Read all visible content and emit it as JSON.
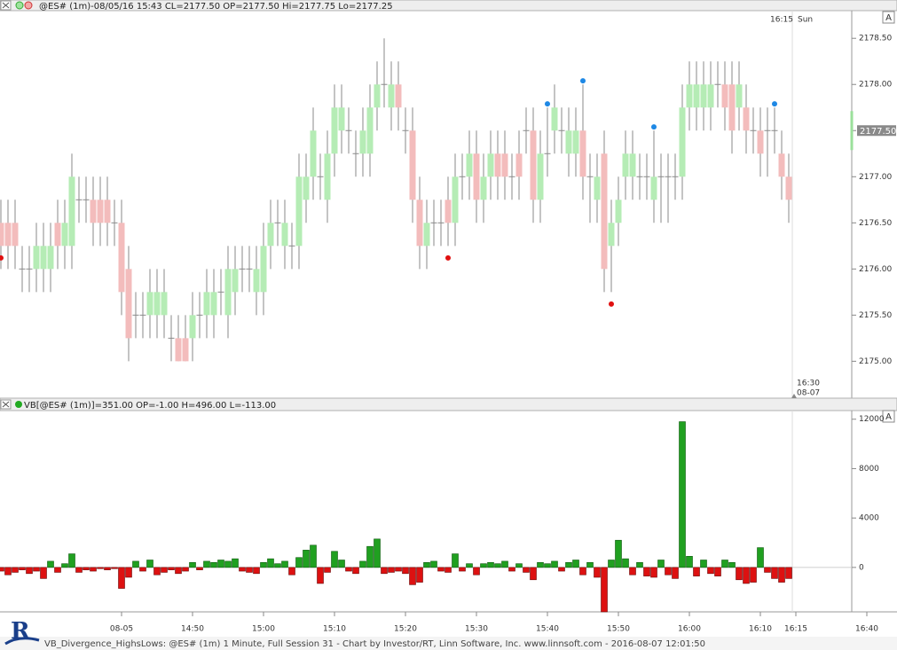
{
  "header": {
    "title": "@ES# (1m)-08/05/16 15:43 CL=2177.50 OP=2177.50 Hi=2177.75 Lo=2177.25",
    "button": "A"
  },
  "chart_data": [
    {
      "type": "candlestick",
      "x": [
        "14:23",
        "14:24",
        "14:25",
        "14:26",
        "14:27",
        "14:28",
        "14:29",
        "14:30",
        "14:31",
        "14:32",
        "14:33",
        "14:34",
        "14:35",
        "14:36",
        "14:37",
        "14:38",
        "14:39",
        "14:40",
        "14:41",
        "14:42",
        "14:43",
        "14:44",
        "14:45",
        "14:46",
        "14:47",
        "14:48",
        "14:49",
        "14:50",
        "14:51",
        "14:52",
        "14:53",
        "14:54",
        "14:55",
        "14:56",
        "14:57",
        "14:58",
        "14:59",
        "15:00",
        "15:01",
        "15:02",
        "15:03",
        "15:04",
        "15:05",
        "15:06",
        "15:07",
        "15:08",
        "15:09",
        "15:10",
        "15:11",
        "15:12",
        "15:13",
        "15:14",
        "15:15",
        "15:16",
        "15:17",
        "15:18",
        "15:19",
        "15:20",
        "15:21",
        "15:22",
        "15:23",
        "15:24",
        "15:25",
        "15:26",
        "15:27",
        "15:28",
        "15:29",
        "15:30",
        "15:31",
        "15:32",
        "15:33",
        "15:34",
        "15:35",
        "15:36",
        "15:37",
        "15:38",
        "15:39",
        "15:40",
        "15:41",
        "15:42",
        "15:43",
        "15:44",
        "15:45",
        "15:46",
        "15:47",
        "15:48",
        "15:49",
        "15:50",
        "15:51",
        "15:52",
        "15:53",
        "15:54",
        "15:55",
        "15:56",
        "15:57",
        "15:58",
        "15:59",
        "16:00",
        "16:01",
        "16:02",
        "16:03",
        "16:04",
        "16:05",
        "16:06",
        "16:07",
        "16:08",
        "16:09",
        "16:10",
        "16:11",
        "16:12",
        "16:13",
        "16:14"
      ],
      "open": [
        2176.5,
        2176.5,
        2176.5,
        2176,
        2176,
        2176,
        2176,
        2176,
        2176.5,
        2176.25,
        2176.25,
        2176.75,
        2176.75,
        2176.75,
        2176.75,
        2176.75,
        2176.5,
        2176.5,
        2176,
        2175.5,
        2175.5,
        2175.5,
        2175.5,
        2175.5,
        2175.25,
        2175.25,
        2175.25,
        2175.25,
        2175.5,
        2175.5,
        2175.5,
        2175.75,
        2175.5,
        2175.75,
        2176,
        2176,
        2175.75,
        2175.75,
        2176.25,
        2176.5,
        2176.25,
        2176.25,
        2176.25,
        2176.75,
        2177,
        2177,
        2176.75,
        2177.25,
        2177.5,
        2177.5,
        2177.25,
        2177.25,
        2177.25,
        2177.75,
        2178,
        2177.75,
        2178,
        2177.5,
        2177.5,
        2176.75,
        2176.25,
        2176.5,
        2176.5,
        2176.75,
        2176.5,
        2177,
        2177,
        2177.25,
        2176.75,
        2177,
        2177.25,
        2177.25,
        2177,
        2177.25,
        2177.5,
        2177.5,
        2176.75,
        2177.25,
        2177.5,
        2177.5,
        2177.25,
        2177.25,
        2177.5,
        2177,
        2176.75,
        2177.25,
        2176.25,
        2176.5,
        2177,
        2177,
        2177,
        2177,
        2176.75,
        2177,
        2177,
        2177,
        2177,
        2177.75,
        2177.75,
        2177.75,
        2177.75,
        2178,
        2178,
        2178,
        2177.75,
        2177.75,
        2177.5,
        2177.5,
        2177.5,
        2177.5,
        2177.25,
        2177
      ],
      "high": [
        2176.75,
        2176.75,
        2176.75,
        2176.25,
        2176.25,
        2176.5,
        2176.5,
        2176.5,
        2176.75,
        2176.75,
        2177.25,
        2177,
        2177,
        2177,
        2177,
        2177,
        2176.75,
        2176.75,
        2176.25,
        2175.75,
        2175.75,
        2176,
        2176,
        2176,
        2175.5,
        2175.5,
        2175.5,
        2175.75,
        2175.75,
        2176,
        2176,
        2176,
        2176.25,
        2176.25,
        2176.25,
        2176.25,
        2176.25,
        2176.5,
        2176.75,
        2176.75,
        2176.75,
        2176.5,
        2177.25,
        2177.25,
        2177.75,
        2177.25,
        2177.5,
        2178,
        2178,
        2177.75,
        2177.5,
        2177.75,
        2178,
        2178.25,
        2178.5,
        2178.25,
        2178.25,
        2177.75,
        2177.75,
        2177,
        2176.75,
        2176.75,
        2176.75,
        2177,
        2177.25,
        2177.25,
        2177.5,
        2177.5,
        2177.25,
        2177.5,
        2177.5,
        2177.5,
        2177.25,
        2177.5,
        2177.75,
        2177.75,
        2177.5,
        2177.75,
        2178,
        2177.75,
        2177.75,
        2177.75,
        2178,
        2177.25,
        2177.25,
        2177.5,
        2176.75,
        2177,
        2177.5,
        2177.5,
        2177.25,
        2177.25,
        2177.5,
        2177.25,
        2177.25,
        2177.25,
        2178,
        2178.25,
        2178.25,
        2178.25,
        2178.25,
        2178.25,
        2178.25,
        2178.25,
        2178.25,
        2178,
        2177.75,
        2177.75,
        2177.75,
        2177.75,
        2177.5,
        2177.25
      ],
      "low": [
        2176,
        2176,
        2176,
        2175.75,
        2175.75,
        2175.75,
        2175.75,
        2175.75,
        2176,
        2176,
        2176,
        2176.5,
        2176.5,
        2176.25,
        2176.25,
        2176.25,
        2176.25,
        2175.5,
        2175,
        2175.25,
        2175.25,
        2175.25,
        2175.25,
        2175.25,
        2175,
        2175,
        2175,
        2175,
        2175.25,
        2175.25,
        2175.25,
        2175.5,
        2175.25,
        2175.5,
        2175.75,
        2175.75,
        2175.5,
        2175.5,
        2176,
        2176.25,
        2176,
        2176,
        2176,
        2176.5,
        2176.75,
        2176.75,
        2176.5,
        2177,
        2177.25,
        2177.25,
        2177,
        2177,
        2177,
        2177.5,
        2177.75,
        2177.5,
        2177.5,
        2177.25,
        2176.5,
        2176,
        2176,
        2176.25,
        2176.25,
        2176.25,
        2176.25,
        2176.75,
        2176.75,
        2176.5,
        2176.5,
        2176.75,
        2176.75,
        2176.75,
        2176.75,
        2176.75,
        2177.25,
        2176.5,
        2176.5,
        2177,
        2177.25,
        2177.25,
        2177,
        2177,
        2176.75,
        2176.5,
        2176.5,
        2175.75,
        2175.75,
        2176.25,
        2176.75,
        2176.75,
        2176.75,
        2176.75,
        2176.5,
        2176.5,
        2176.5,
        2176.75,
        2176.75,
        2177.5,
        2177.5,
        2177.5,
        2177.5,
        2177.75,
        2177.5,
        2177.25,
        2177.5,
        2177.25,
        2177.25,
        2177,
        2177,
        2177.25,
        2176.75,
        2176.5
      ],
      "close": [
        2176.25,
        2176.25,
        2176.25,
        2176,
        2176,
        2176.25,
        2176.25,
        2176.25,
        2176.25,
        2176.5,
        2177,
        2176.75,
        2176.75,
        2176.5,
        2176.5,
        2176.5,
        2176.5,
        2175.75,
        2175.25,
        2175.5,
        2175.5,
        2175.75,
        2175.75,
        2175.75,
        2175.25,
        2175,
        2175,
        2175.5,
        2175.5,
        2175.75,
        2175.75,
        2175.75,
        2176,
        2176,
        2176,
        2176,
        2176,
        2176.25,
        2176.5,
        2176.5,
        2176.5,
        2176.25,
        2177,
        2177,
        2177.5,
        2177,
        2177.25,
        2177.75,
        2177.75,
        2177.5,
        2177.25,
        2177.5,
        2177.75,
        2178,
        2178,
        2178,
        2177.75,
        2177.5,
        2176.75,
        2176.25,
        2176.5,
        2176.5,
        2176.5,
        2176.5,
        2177,
        2177,
        2177.25,
        2176.75,
        2177,
        2177.25,
        2177,
        2177,
        2177,
        2177,
        2177.5,
        2176.75,
        2177.25,
        2177.25,
        2177.75,
        2177.5,
        2177.5,
        2177.5,
        2177,
        2177,
        2177,
        2176,
        2176.5,
        2176.75,
        2177.25,
        2177.25,
        2177,
        2177,
        2177,
        2177,
        2177,
        2177,
        2177.75,
        2178,
        2178,
        2178,
        2178,
        2178,
        2177.75,
        2177.5,
        2178,
        2177.5,
        2177.5,
        2177.25,
        2177.5,
        2177.5,
        2177,
        2176.75
      ],
      "up_color": "#b5ecb5",
      "down_color": "#f3bcbc",
      "wick_color": "#8a8a8a",
      "high_markers": {
        "color": "#1e88e5",
        "x": [
          "15:40",
          "15:45",
          "15:55",
          "16:12"
        ],
        "values": [
          2177.79,
          2178.04,
          2177.54,
          2177.79
        ]
      },
      "low_markers": {
        "color": "#e01010",
        "x": [
          "14:23",
          "15:26",
          "15:49"
        ],
        "values": [
          2176.12,
          2176.12,
          2175.62
        ]
      },
      "last_price": {
        "value": 2177.5,
        "label": "2177.50"
      },
      "annotations": [
        "16:15",
        "Sun",
        "16:30",
        "08-07"
      ],
      "ylim": [
        2174.6,
        2178.8
      ],
      "yticks": [
        {
          "value": 2175,
          "label": "2175.00"
        },
        {
          "value": 2175.5,
          "label": "2175.50"
        },
        {
          "value": 2176,
          "label": "2176.00"
        },
        {
          "value": 2176.5,
          "label": "2176.50"
        },
        {
          "value": 2177,
          "label": "2177.00"
        },
        {
          "value": 2177.5,
          "label": "2177.50"
        },
        {
          "value": 2178,
          "label": "2178.00"
        },
        {
          "value": 2178.5,
          "label": "2178.50"
        }
      ]
    },
    {
      "type": "bar",
      "title": "VB[@ES# (1m)]=351.00 OP=-1.00 H=496.00 L=-113.00",
      "button": "A",
      "x": [
        "14:23",
        "14:24",
        "14:25",
        "14:26",
        "14:27",
        "14:28",
        "14:29",
        "14:30",
        "14:31",
        "14:32",
        "14:33",
        "14:34",
        "14:35",
        "14:36",
        "14:37",
        "14:38",
        "14:39",
        "14:40",
        "14:41",
        "14:42",
        "14:43",
        "14:44",
        "14:45",
        "14:46",
        "14:47",
        "14:48",
        "14:49",
        "14:50",
        "14:51",
        "14:52",
        "14:53",
        "14:54",
        "14:55",
        "14:56",
        "14:57",
        "14:58",
        "14:59",
        "15:00",
        "15:01",
        "15:02",
        "15:03",
        "15:04",
        "15:05",
        "15:06",
        "15:07",
        "15:08",
        "15:09",
        "15:10",
        "15:11",
        "15:12",
        "15:13",
        "15:14",
        "15:15",
        "15:16",
        "15:17",
        "15:18",
        "15:19",
        "15:20",
        "15:21",
        "15:22",
        "15:23",
        "15:24",
        "15:25",
        "15:26",
        "15:27",
        "15:28",
        "15:29",
        "15:30",
        "15:31",
        "15:32",
        "15:33",
        "15:34",
        "15:35",
        "15:36",
        "15:37",
        "15:38",
        "15:39",
        "15:40",
        "15:41",
        "15:42",
        "15:43",
        "15:44",
        "15:45",
        "15:46",
        "15:47",
        "15:48",
        "15:49",
        "15:50",
        "15:51",
        "15:52",
        "15:53",
        "15:54",
        "15:55",
        "15:56",
        "15:57",
        "15:58",
        "15:59",
        "16:00",
        "16:01",
        "16:02",
        "16:03",
        "16:04",
        "16:05",
        "16:06",
        "16:07",
        "16:08",
        "16:09",
        "16:10",
        "16:11",
        "16:12",
        "16:13",
        "16:14"
      ],
      "values": [
        -300,
        -600,
        -400,
        -200,
        -500,
        -300,
        -900,
        500,
        -400,
        300,
        1100,
        -400,
        -200,
        -300,
        -100,
        -200,
        -100,
        -1700,
        -800,
        500,
        -300,
        600,
        -600,
        -400,
        -200,
        -500,
        -300,
        400,
        -200,
        500,
        400,
        600,
        500,
        700,
        -300,
        -400,
        -500,
        400,
        700,
        300,
        500,
        -600,
        800,
        1400,
        1800,
        -1300,
        -400,
        1300,
        600,
        -300,
        -500,
        500,
        1700,
        2300,
        -500,
        -400,
        -300,
        -500,
        -1400,
        -1200,
        400,
        500,
        -300,
        -400,
        1100,
        -300,
        300,
        -600,
        300,
        400,
        300,
        500,
        -300,
        300,
        -400,
        -1000,
        400,
        300,
        500,
        -300,
        400,
        600,
        -600,
        400,
        -800,
        -3600,
        600,
        2200,
        700,
        -600,
        400,
        -700,
        -800,
        600,
        -600,
        -900,
        11800,
        900,
        -700,
        600,
        -500,
        -700,
        600,
        400,
        -1000,
        -1300,
        -1200,
        1600,
        -400,
        -900,
        -1200,
        -900
      ],
      "up_color": "#20a020",
      "down_color": "#dd1111",
      "ylim": [
        -3600,
        12700
      ],
      "yticks": [
        0,
        4000,
        8000,
        12000
      ],
      "xticks": [
        {
          "value": "14:40",
          "label": "08-05"
        },
        "14:50",
        "15:00",
        "15:10",
        "15:20",
        "15:30",
        "15:40",
        "15:50",
        "16:00",
        "16:10",
        "16:15",
        "16:40"
      ]
    }
  ],
  "logo": "R",
  "footer": "VB_Divergence_HighsLows: @ES# (1m) 1 Minute, Full Session 31 - Chart by Investor/RT, Linn Software, Inc. www.linnsoft.com - 2016-08-07 12:01:50"
}
